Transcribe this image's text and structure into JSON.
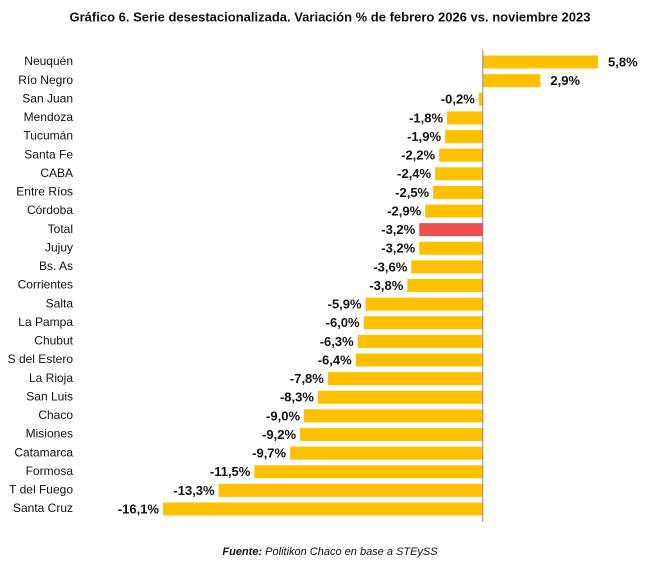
{
  "chart_data": {
    "type": "hbar",
    "title": "Gráfico 6. Serie desestacionalizada. Variación % de febrero 2026 vs. noviembre 2023",
    "source_label": "Fuente:",
    "source": "Politikon Chaco en base a STEySS",
    "categories": [
      "Neuquén",
      "Río Negro",
      "San Juan",
      "Mendoza",
      "Tucumán",
      "Santa Fe",
      "CABA",
      "Entre Ríos",
      "Córdoba",
      "Total",
      "Jujuy",
      "Bs. As",
      "Corrientes",
      "Salta",
      "La Pampa",
      "Chubut",
      "S del Estero",
      "La Rioja",
      "San Luis",
      "Chaco",
      "Misiones",
      "Catamarca",
      "Formosa",
      "T del Fuego",
      "Santa Cruz"
    ],
    "values": [
      5.8,
      2.9,
      -0.2,
      -1.8,
      -1.9,
      -2.2,
      -2.4,
      -2.5,
      -2.9,
      -3.2,
      -3.2,
      -3.6,
      -3.8,
      -5.9,
      -6.0,
      -6.3,
      -6.4,
      -7.8,
      -8.3,
      -9.0,
      -9.2,
      -9.7,
      -11.5,
      -13.3,
      -16.1
    ],
    "value_labels": [
      "5,8%",
      "2,9%",
      "-0,2%",
      "-1,8%",
      "-1,9%",
      "-2,2%",
      "-2,4%",
      "-2,5%",
      "-2,9%",
      "-3,2%",
      "-3,2%",
      "-3,6%",
      "-3,8%",
      "-5,9%",
      "-6,0%",
      "-6,3%",
      "-6,4%",
      "-7,8%",
      "-8,3%",
      "-9,0%",
      "-9,2%",
      "-9,7%",
      "-11,5%",
      "-13,3%",
      "-16,1%"
    ],
    "colors": [
      "#FFC000",
      "#FFC000",
      "#FFC000",
      "#FFC000",
      "#FFC000",
      "#FFC000",
      "#FFC000",
      "#FFC000",
      "#FFC000",
      "#F04E4E",
      "#FFC000",
      "#FFC000",
      "#FFC000",
      "#FFC000",
      "#FFC000",
      "#FFC000",
      "#FFC000",
      "#FFC000",
      "#FFC000",
      "#FFC000",
      "#FFC000",
      "#FFC000",
      "#FFC000",
      "#FFC000",
      "#FFC000"
    ]
  }
}
